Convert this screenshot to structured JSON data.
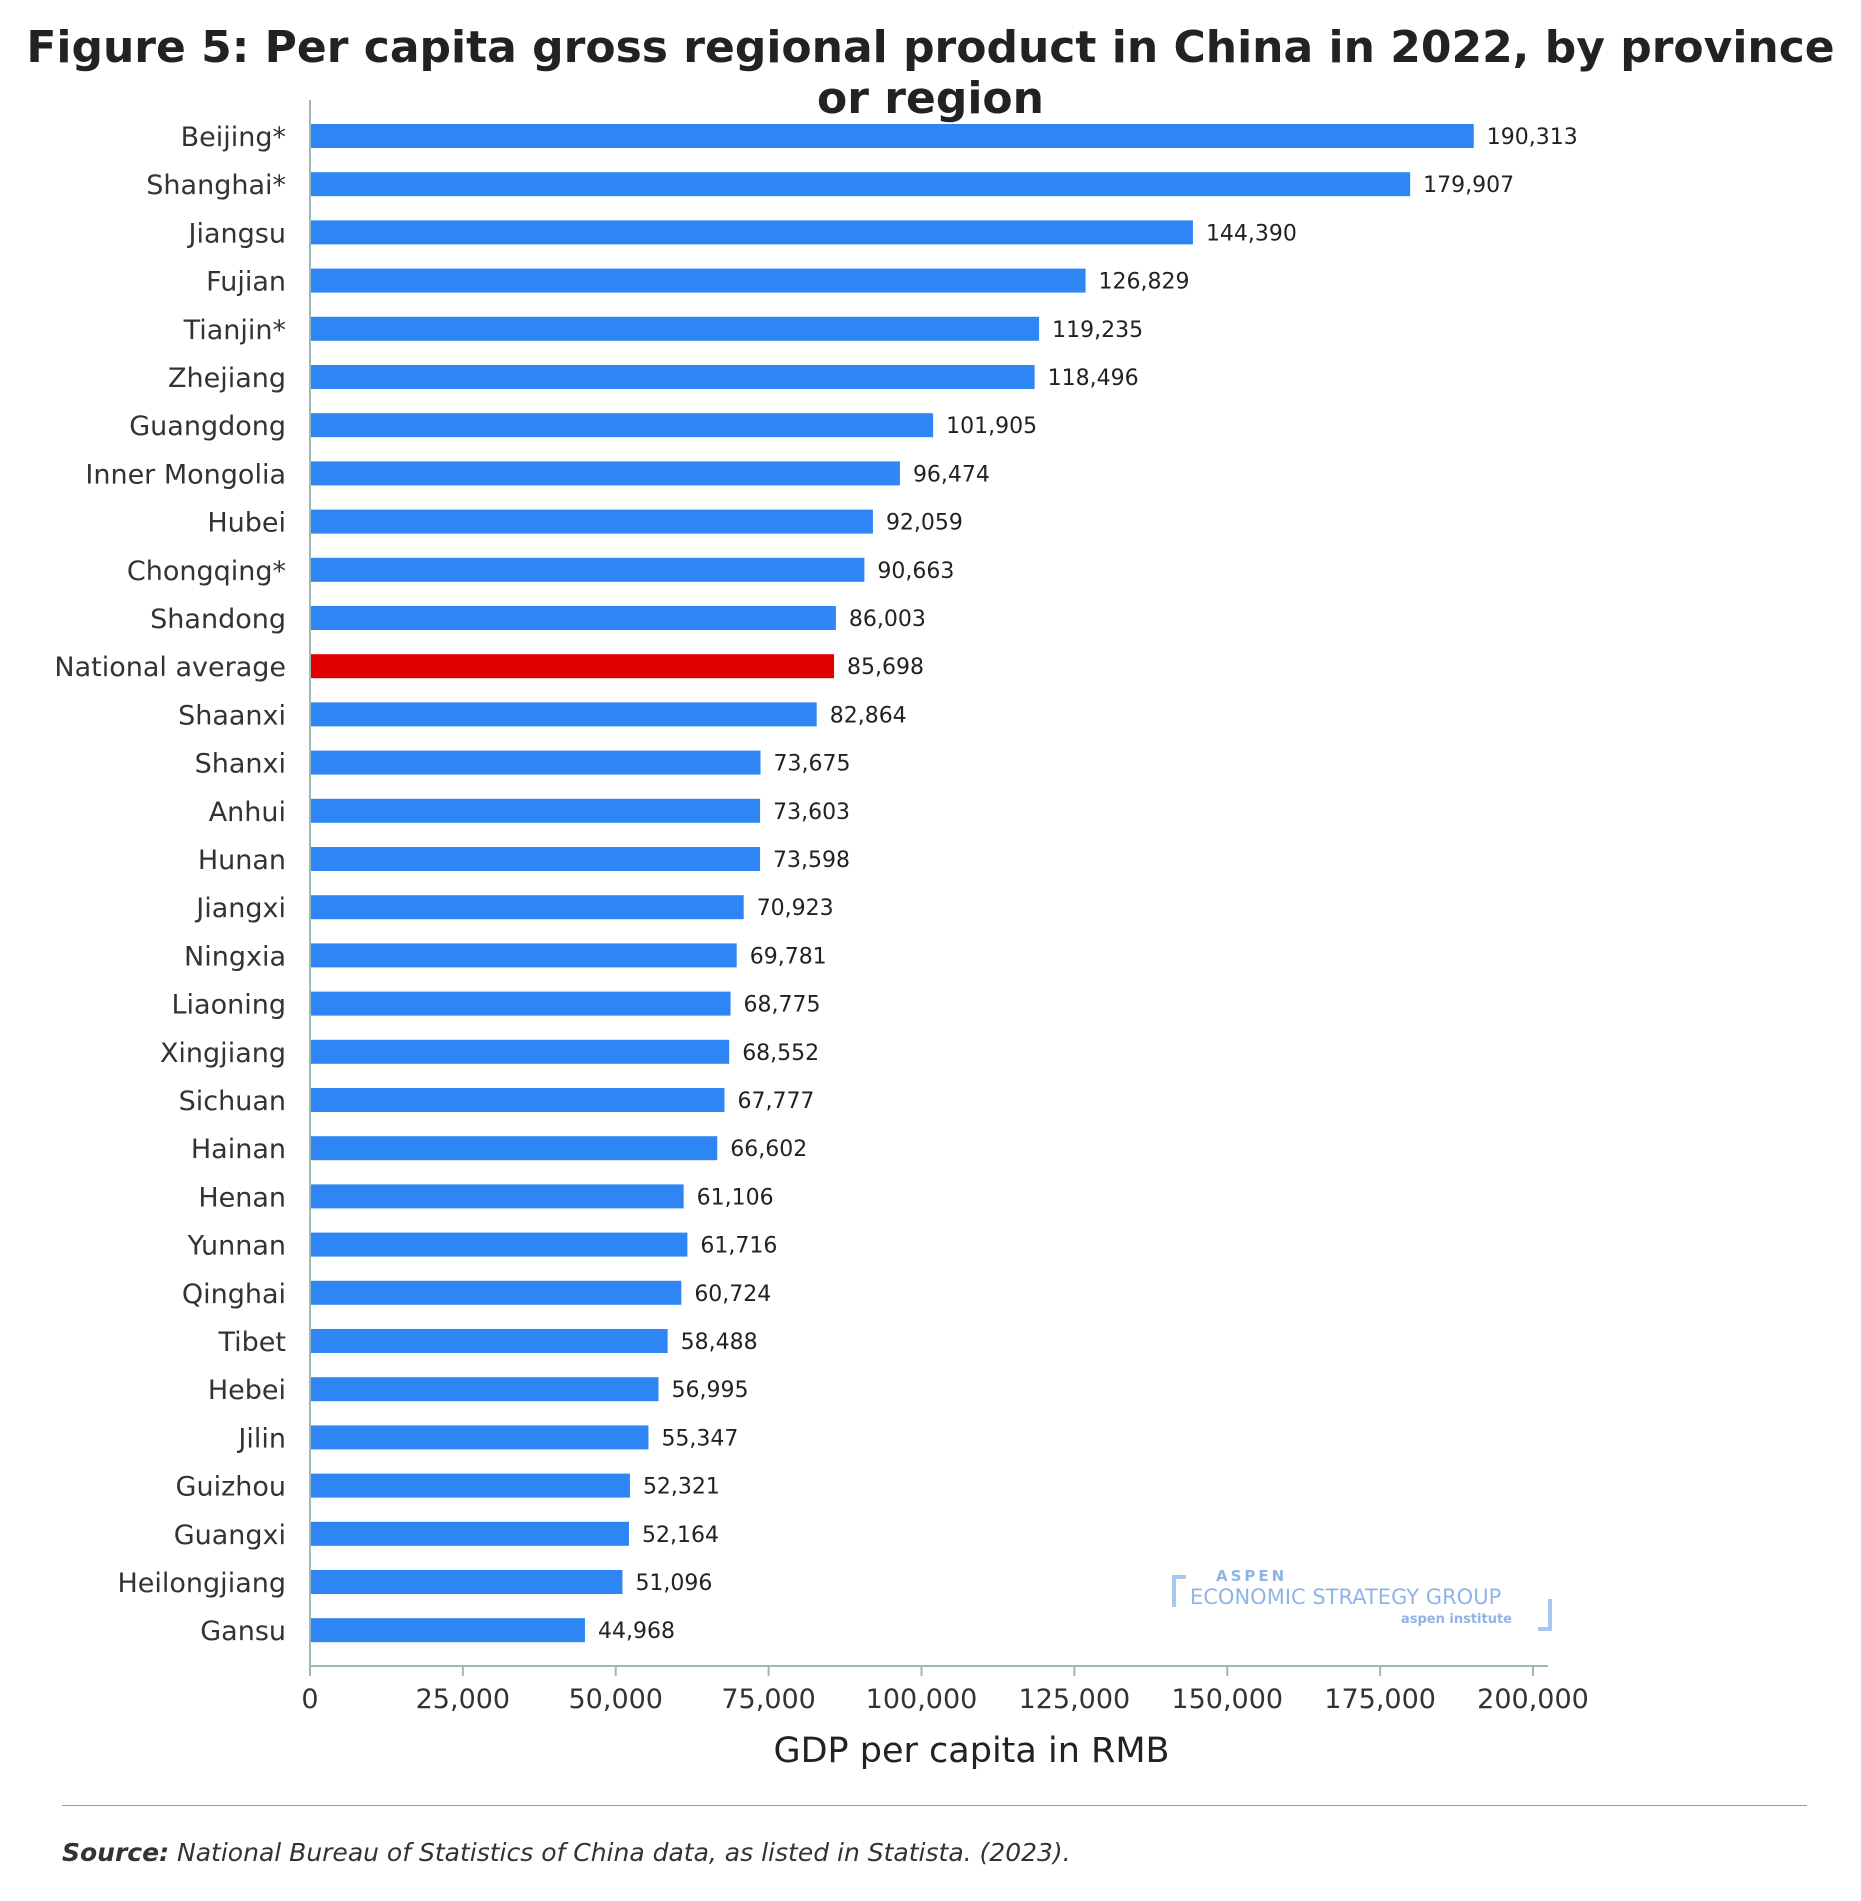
{
  "title": "Figure 5: Per capita gross regional product in China in 2022, by province or region",
  "chart_data": {
    "type": "bar",
    "orientation": "horizontal",
    "title": "Figure 5: Per capita gross regional product in China in 2022, by province or region",
    "xlabel": "GDP per capita in RMB",
    "ylabel": "",
    "xlim": [
      0,
      200000
    ],
    "ticks": [
      0,
      25000,
      50000,
      75000,
      100000,
      125000,
      150000,
      175000,
      200000
    ],
    "tick_labels": [
      "0",
      "25,000",
      "50,000",
      "75,000",
      "100,000",
      "125,000",
      "150,000",
      "175,000",
      "200,000"
    ],
    "categories": [
      "Beijing*",
      "Shanghai*",
      "Jiangsu",
      "Fujian",
      "Tianjin*",
      "Zhejiang",
      "Guangdong",
      "Inner Mongolia",
      "Hubei",
      "Chongqing*",
      "Shandong",
      "National average",
      "Shaanxi",
      "Shanxi",
      "Anhui",
      "Hunan",
      "Jiangxi",
      "Ningxia",
      "Liaoning",
      "Xingjiang",
      "Sichuan",
      "Hainan",
      "Henan",
      "Yunnan",
      "Qinghai",
      "Tibet",
      "Hebei",
      "Jilin",
      "Guizhou",
      "Guangxi",
      "Heilongjiang",
      "Gansu"
    ],
    "values": [
      190313,
      179907,
      144390,
      126829,
      119235,
      118496,
      101905,
      96474,
      92059,
      90663,
      86003,
      85698,
      82864,
      73675,
      73603,
      73598,
      70923,
      69781,
      68775,
      68552,
      67777,
      66602,
      61106,
      61716,
      60724,
      58488,
      56995,
      55347,
      52321,
      52164,
      51096,
      44968
    ],
    "value_labels": [
      "190,313",
      "179,907",
      "144,390",
      "126,829",
      "119,235",
      "118,496",
      "101,905",
      "96,474",
      "92,059",
      "90,663",
      "86,003",
      "85,698",
      "82,864",
      "73,675",
      "73,603",
      "73,598",
      "70,923",
      "69,781",
      "68,775",
      "68,552",
      "67,777",
      "66,602",
      "61,106",
      "61,716",
      "60,724",
      "58,488",
      "56,995",
      "55,347",
      "52,321",
      "52,164",
      "51,096",
      "44,968"
    ],
    "highlight_category": "National average",
    "colors": {
      "bar": "#2e86f5",
      "highlight": "#e00000",
      "axis": "#9fb9b9"
    }
  },
  "logo": {
    "line1": "ASPEN",
    "line2": "ECONOMIC STRATEGY GROUP",
    "line3": "aspen institute"
  },
  "source": {
    "label": "Source:",
    "text": " National Bureau of Statistics of China data, as listed in Statista. (2023)."
  }
}
